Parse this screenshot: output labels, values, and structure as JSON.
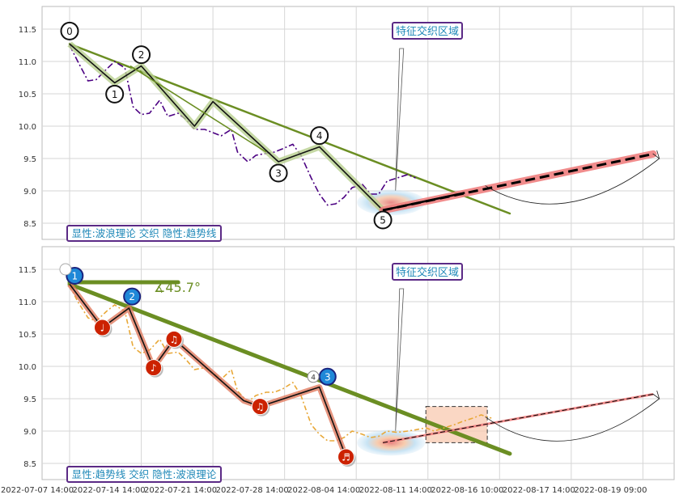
{
  "chart_data": [
    {
      "type": "line",
      "panel": "top",
      "ylim": [
        8.35,
        11.75
      ],
      "yticks": [
        "11.5",
        "11.0",
        "10.5",
        "10.0",
        "9.5",
        "9.0",
        "8.5"
      ],
      "ytick_values": [
        11.5,
        11.0,
        10.5,
        10.0,
        9.5,
        9.0,
        8.5
      ],
      "grid": true,
      "price_series": {
        "x": [
          0,
          0.4,
          0.9,
          1.3,
          1.8,
          2.2,
          2.7,
          3.1,
          3.5,
          3.9,
          4.4,
          4.8,
          5.3,
          5.7,
          6.1,
          6.6,
          7.0,
          7.4,
          7.9,
          8.2,
          8.7,
          9.1,
          9.6,
          10.0,
          10.4,
          10.9,
          11.3,
          11.8,
          12.2,
          12.6,
          13.0,
          13.4,
          13.8,
          14.3,
          14.7,
          15.1,
          15.5,
          16.0,
          16.5,
          16.9
        ],
        "y": [
          11.25,
          11.0,
          10.7,
          10.72,
          10.88,
          11.0,
          10.9,
          10.3,
          10.18,
          10.2,
          10.4,
          10.15,
          10.2,
          10.1,
          9.95,
          9.95,
          9.9,
          9.85,
          9.95,
          9.6,
          9.45,
          9.55,
          9.58,
          9.6,
          9.65,
          9.72,
          9.55,
          9.2,
          8.95,
          8.78,
          8.8,
          8.9,
          9.05,
          9.1,
          8.95,
          8.95,
          9.15,
          9.2,
          9.25,
          9.2
        ]
      },
      "wave_points": [
        {
          "label": "0",
          "x": 0,
          "y": 11.27
        },
        {
          "label": "1",
          "x": 2.2,
          "y": 10.67
        },
        {
          "label": "2",
          "x": 3.5,
          "y": 10.93
        },
        {
          "label": "3",
          "x": 10.2,
          "y": 9.45
        },
        {
          "label": "4",
          "x": 12.2,
          "y": 9.68
        },
        {
          "label": "5",
          "x": 15.3,
          "y": 8.7
        }
      ],
      "wave_zigzag_extra": [
        {
          "x": 6.1,
          "y": 10.0
        },
        {
          "x": 7.0,
          "y": 10.38
        }
      ],
      "trend_line": {
        "x0": 0,
        "y0": 11.27,
        "x1": 21.5,
        "y1": 8.65
      },
      "forecast": {
        "x0": 15.3,
        "y0": 8.7,
        "x1": 28.5,
        "y1": 9.57
      },
      "region_label": "特征交织区域",
      "legend_text": "显性:波浪理论 交织 隐性:趋势线"
    },
    {
      "type": "line",
      "panel": "bottom",
      "ylim": [
        8.35,
        11.75
      ],
      "yticks": [
        "11.5",
        "11.0",
        "10.5",
        "10.0",
        "9.5",
        "9.0",
        "8.5"
      ],
      "ytick_values": [
        11.5,
        11.0,
        10.5,
        10.0,
        9.5,
        9.0,
        8.5
      ],
      "grid": true,
      "xlabels": [
        "2022-07-07 14:00",
        "2022-07-14 14:00",
        "2022-07-21 14:00",
        "2022-07-28 14:00",
        "2022-08-04 14:00",
        "2022-08-11 14:00",
        "2022-08-16 10:00",
        "2022-08-17 14:00",
        "2022-08-19 09:00"
      ],
      "xlabel_positions": [
        0,
        3.5,
        7,
        10.5,
        14,
        17.5,
        21,
        24.5,
        28
      ],
      "price_series": {
        "x": [
          0,
          0.4,
          0.9,
          1.3,
          1.8,
          2.2,
          2.7,
          3.1,
          3.5,
          3.9,
          4.4,
          4.8,
          5.3,
          5.7,
          6.1,
          6.6,
          7.0,
          7.4,
          7.9,
          8.2,
          8.7,
          9.1,
          9.6,
          10.0,
          10.4,
          10.9,
          11.3,
          11.8,
          12.2,
          12.6,
          13.0,
          13.4,
          13.8,
          14.3,
          14.7,
          15.1,
          15.5,
          16.0,
          16.5,
          16.9,
          17.4,
          17.8,
          18.3,
          18.8,
          19.2,
          19.7,
          20.1,
          20.6
        ],
        "y": [
          11.25,
          11.0,
          10.75,
          10.7,
          10.85,
          10.95,
          10.85,
          10.3,
          10.2,
          10.25,
          10.42,
          10.2,
          10.22,
          10.1,
          9.95,
          9.98,
          9.9,
          9.8,
          9.95,
          9.62,
          9.45,
          9.55,
          9.6,
          9.6,
          9.65,
          9.75,
          9.55,
          9.1,
          8.95,
          8.85,
          8.85,
          8.9,
          9.0,
          8.95,
          8.9,
          8.92,
          9.0,
          8.98,
          9.0,
          9.02,
          9.05,
          9.0,
          9.05,
          9.1,
          9.15,
          9.2,
          9.25,
          9.2
        ]
      },
      "wave_points": [
        {
          "x": 0,
          "y": 11.27,
          "glyph": ""
        },
        {
          "x": 1.6,
          "y": 10.6,
          "glyph": "♩"
        },
        {
          "x": 2.9,
          "y": 10.9,
          "glyph": ""
        },
        {
          "x": 4.1,
          "y": 9.98,
          "glyph": "♪"
        },
        {
          "x": 5.1,
          "y": 10.42,
          "glyph": "♫"
        },
        {
          "x": 8.5,
          "y": 9.47,
          "glyph": ""
        },
        {
          "x": 9.3,
          "y": 9.38,
          "glyph": "♫"
        },
        {
          "x": 12.2,
          "y": 9.68,
          "glyph": ""
        },
        {
          "x": 13.5,
          "y": 8.6,
          "glyph": "♬"
        }
      ],
      "blue_markers": [
        {
          "label": "1",
          "x": 0.25,
          "y": 11.4
        },
        {
          "label": "2",
          "x": 3.05,
          "y": 11.08
        },
        {
          "label": "3",
          "x": 12.6,
          "y": 9.84
        },
        {
          "label": "4",
          "x": 11.9,
          "y": 9.84
        }
      ],
      "trend_line": {
        "x0": 0,
        "y0": 11.27,
        "x1": 21.5,
        "y1": 8.65
      },
      "horizontal_line": {
        "x0": 0,
        "y0": 11.3,
        "x1": 5.3,
        "y1": 11.3
      },
      "angle_label": "∡45.7°",
      "forecast": {
        "x0": 15.3,
        "y0": 8.82,
        "x1": 28.5,
        "y1": 9.57
      },
      "box": {
        "x0": 17.4,
        "y0": 9.38,
        "x1": 20.4,
        "y1": 8.82
      },
      "region_label": "特征交织区域",
      "legend_text": "显性:趋势线 交织 隐性:波浪理论"
    }
  ]
}
